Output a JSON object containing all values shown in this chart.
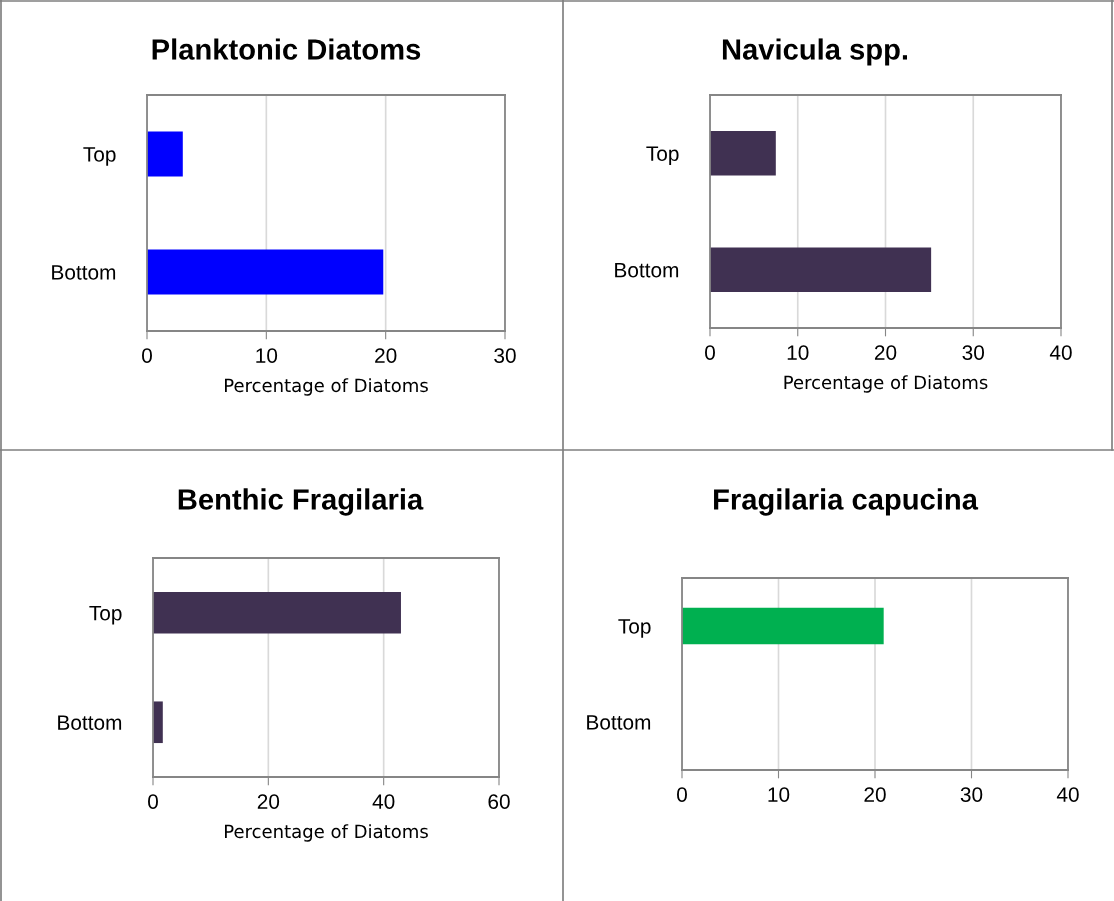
{
  "chart_data": [
    {
      "type": "bar",
      "orientation": "horizontal",
      "title": "Planktonic Diatoms",
      "xlabel": "Percentage of Diatoms",
      "categories": [
        "Top",
        "Bottom"
      ],
      "values": [
        3.0,
        19.8
      ],
      "color": "#0000ff",
      "xlim": [
        0,
        30
      ],
      "xticks": [
        0,
        10,
        20,
        30
      ],
      "grid": "x"
    },
    {
      "type": "bar",
      "orientation": "horizontal",
      "title": "Navicula spp.",
      "xlabel": "Percentage of Diatoms",
      "categories": [
        "Top",
        "Bottom"
      ],
      "values": [
        7.5,
        25.2
      ],
      "color": "#403152",
      "xlim": [
        0,
        40
      ],
      "xticks": [
        0,
        10,
        20,
        30,
        40
      ],
      "grid": "x"
    },
    {
      "type": "bar",
      "orientation": "horizontal",
      "title": "Benthic Fragilaria",
      "xlabel": "Percentage of Diatoms",
      "categories": [
        "Top",
        "Bottom"
      ],
      "values": [
        43,
        1.7
      ],
      "color": "#403152",
      "xlim": [
        0,
        60
      ],
      "xticks": [
        0,
        20,
        40,
        60
      ],
      "grid": "x"
    },
    {
      "type": "bar",
      "orientation": "horizontal",
      "title": "Fragilaria capucina",
      "categories": [
        "Top",
        "Bottom"
      ],
      "values": [
        20.9,
        0
      ],
      "color": "#00b050",
      "xlim": [
        0,
        40
      ],
      "xticks": [
        0,
        10,
        20,
        30,
        40
      ],
      "grid": "x"
    }
  ]
}
